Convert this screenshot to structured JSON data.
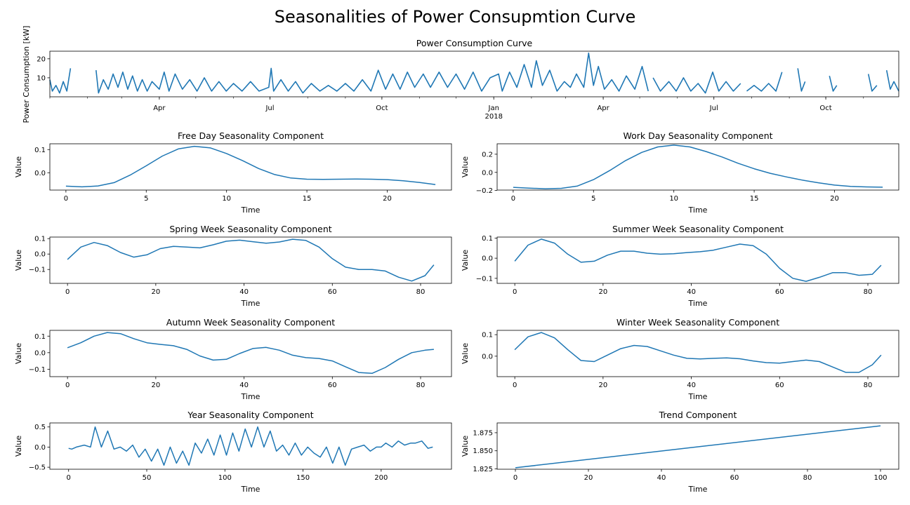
{
  "figure": {
    "title": "Seasonalities of Power Consupmtion Curve"
  },
  "colors": {
    "line": "#1f77b4",
    "axis": "#000000",
    "background": "#ffffff"
  },
  "chart_data": [
    {
      "id": "power",
      "type": "line",
      "title": "Power Consumption Curve",
      "xlabel": "",
      "ylabel": "Power Consumption [kW]",
      "ylim": [
        0,
        24
      ],
      "yticks": [
        10,
        20
      ],
      "xrange": [
        "2017-01-01",
        "2018-11-30"
      ],
      "xticks": [
        {
          "date": "2017-04-01",
          "label": "Apr"
        },
        {
          "date": "2017-07-01",
          "label": "Jul"
        },
        {
          "date": "2017-10-01",
          "label": "Oct"
        },
        {
          "date": "2018-01-01",
          "label": "Jan",
          "sublabel": "2018"
        },
        {
          "date": "2018-04-01",
          "label": "Apr"
        },
        {
          "date": "2018-07-01",
          "label": "Jul"
        },
        {
          "date": "2018-10-01",
          "label": "Oct"
        }
      ],
      "note_values": "dense hourly signal; approximate envelope samples (date, kW) with gaps where no data",
      "segments": [
        [
          [
            "2017-01-01",
            9
          ],
          [
            "2017-01-03",
            3
          ],
          [
            "2017-01-06",
            6
          ],
          [
            "2017-01-09",
            2
          ],
          [
            "2017-01-12",
            8
          ],
          [
            "2017-01-15",
            3
          ],
          [
            "2017-01-18",
            15
          ]
        ],
        [
          [
            "2017-02-08",
            14
          ],
          [
            "2017-02-10",
            2
          ],
          [
            "2017-02-14",
            9
          ],
          [
            "2017-02-18",
            4
          ],
          [
            "2017-02-22",
            12
          ],
          [
            "2017-02-26",
            5
          ],
          [
            "2017-03-02",
            13
          ],
          [
            "2017-03-06",
            4
          ],
          [
            "2017-03-10",
            11
          ],
          [
            "2017-03-14",
            3
          ],
          [
            "2017-03-18",
            9
          ],
          [
            "2017-03-22",
            3
          ],
          [
            "2017-03-26",
            8
          ],
          [
            "2017-04-01",
            4
          ],
          [
            "2017-04-05",
            13
          ],
          [
            "2017-04-09",
            3
          ],
          [
            "2017-04-14",
            12
          ],
          [
            "2017-04-20",
            4
          ],
          [
            "2017-04-26",
            9
          ],
          [
            "2017-05-02",
            3
          ],
          [
            "2017-05-08",
            10
          ],
          [
            "2017-05-14",
            3
          ],
          [
            "2017-05-20",
            8
          ],
          [
            "2017-05-26",
            3
          ],
          [
            "2017-06-01",
            7
          ],
          [
            "2017-06-08",
            3
          ],
          [
            "2017-06-15",
            8
          ],
          [
            "2017-06-22",
            3
          ],
          [
            "2017-06-30",
            5
          ],
          [
            "2017-07-02",
            15
          ],
          [
            "2017-07-04",
            3
          ],
          [
            "2017-07-10",
            9
          ],
          [
            "2017-07-16",
            3
          ],
          [
            "2017-07-22",
            8
          ],
          [
            "2017-07-28",
            2
          ],
          [
            "2017-08-04",
            7
          ],
          [
            "2017-08-11",
            3
          ],
          [
            "2017-08-18",
            6
          ],
          [
            "2017-08-25",
            3
          ],
          [
            "2017-09-01",
            7
          ],
          [
            "2017-09-08",
            3
          ],
          [
            "2017-09-15",
            9
          ],
          [
            "2017-09-22",
            3
          ],
          [
            "2017-09-28",
            14
          ],
          [
            "2017-10-04",
            4
          ],
          [
            "2017-10-10",
            12
          ],
          [
            "2017-10-16",
            4
          ],
          [
            "2017-10-22",
            13
          ],
          [
            "2017-10-28",
            5
          ],
          [
            "2017-11-04",
            12
          ],
          [
            "2017-11-10",
            5
          ],
          [
            "2017-11-17",
            13
          ],
          [
            "2017-11-24",
            5
          ],
          [
            "2017-12-01",
            12
          ],
          [
            "2017-12-08",
            4
          ],
          [
            "2017-12-15",
            13
          ],
          [
            "2017-12-22",
            3
          ],
          [
            "2017-12-29",
            10
          ],
          [
            "2018-01-05",
            12
          ],
          [
            "2018-01-08",
            3
          ],
          [
            "2018-01-14",
            13
          ],
          [
            "2018-01-20",
            5
          ],
          [
            "2018-01-26",
            17
          ],
          [
            "2018-02-01",
            5
          ],
          [
            "2018-02-05",
            19
          ],
          [
            "2018-02-10",
            6
          ],
          [
            "2018-02-16",
            14
          ],
          [
            "2018-02-22",
            3
          ],
          [
            "2018-02-28",
            8
          ],
          [
            "2018-03-05",
            5
          ],
          [
            "2018-03-10",
            12
          ],
          [
            "2018-03-16",
            5
          ],
          [
            "2018-03-20",
            23
          ],
          [
            "2018-03-24",
            6
          ],
          [
            "2018-03-28",
            16
          ],
          [
            "2018-04-02",
            4
          ],
          [
            "2018-04-08",
            9
          ],
          [
            "2018-04-14",
            3
          ],
          [
            "2018-04-20",
            11
          ],
          [
            "2018-04-27",
            4
          ],
          [
            "2018-05-03",
            16
          ],
          [
            "2018-05-08",
            3
          ]
        ],
        [
          [
            "2018-05-12",
            10
          ],
          [
            "2018-05-18",
            3
          ],
          [
            "2018-05-25",
            8
          ],
          [
            "2018-05-31",
            3
          ],
          [
            "2018-06-06",
            10
          ],
          [
            "2018-06-12",
            3
          ],
          [
            "2018-06-18",
            7
          ],
          [
            "2018-06-24",
            2
          ],
          [
            "2018-06-30",
            13
          ],
          [
            "2018-07-05",
            3
          ],
          [
            "2018-07-11",
            8
          ],
          [
            "2018-07-17",
            3
          ],
          [
            "2018-07-23",
            7
          ]
        ],
        [
          [
            "2018-07-28",
            3
          ],
          [
            "2018-08-03",
            6
          ],
          [
            "2018-08-09",
            3
          ],
          [
            "2018-08-15",
            7
          ],
          [
            "2018-08-21",
            3
          ],
          [
            "2018-08-26",
            13
          ]
        ],
        [
          [
            "2018-09-08",
            15
          ],
          [
            "2018-09-11",
            3
          ],
          [
            "2018-09-14",
            8
          ]
        ],
        [
          [
            "2018-10-04",
            11
          ],
          [
            "2018-10-07",
            3
          ],
          [
            "2018-10-10",
            6
          ]
        ],
        [
          [
            "2018-11-05",
            12
          ],
          [
            "2018-11-08",
            3
          ],
          [
            "2018-11-12",
            6
          ]
        ],
        [
          [
            "2018-11-20",
            14
          ],
          [
            "2018-11-23",
            4
          ],
          [
            "2018-11-26",
            8
          ],
          [
            "2018-11-30",
            3
          ]
        ]
      ]
    },
    {
      "id": "freeday",
      "type": "line",
      "title": "Free Day Seasonality Component",
      "xlabel": "Time",
      "ylabel": "Value",
      "xlim": [
        -1,
        24
      ],
      "ylim": [
        -0.075,
        0.125
      ],
      "xticks": [
        0,
        5,
        10,
        15,
        20
      ],
      "yticks": [
        0.0,
        0.1
      ],
      "ytick_labels": [
        "0.0",
        "0.1"
      ],
      "x": [
        0,
        1,
        2,
        3,
        4,
        5,
        6,
        7,
        8,
        9,
        10,
        11,
        12,
        13,
        14,
        15,
        16,
        17,
        18,
        19,
        20,
        21,
        22,
        23
      ],
      "y": [
        -0.058,
        -0.061,
        -0.057,
        -0.043,
        -0.01,
        0.03,
        0.072,
        0.103,
        0.114,
        0.107,
        0.083,
        0.052,
        0.018,
        -0.008,
        -0.023,
        -0.028,
        -0.029,
        -0.028,
        -0.027,
        -0.028,
        -0.03,
        -0.035,
        -0.042,
        -0.051
      ]
    },
    {
      "id": "workday",
      "type": "line",
      "title": "Work Day Seasonality Component",
      "xlabel": "Time",
      "ylabel": "Value",
      "xlim": [
        -1,
        24
      ],
      "ylim": [
        -0.195,
        0.315
      ],
      "xticks": [
        0,
        5,
        10,
        15,
        20
      ],
      "yticks": [
        -0.2,
        0.0,
        0.2
      ],
      "ytick_labels": [
        "−0.2",
        "0.0",
        "0.2"
      ],
      "x": [
        0,
        1,
        2,
        3,
        4,
        5,
        6,
        7,
        8,
        9,
        10,
        11,
        12,
        13,
        14,
        15,
        16,
        17,
        18,
        19,
        20,
        21,
        22,
        23
      ],
      "y": [
        -0.165,
        -0.173,
        -0.18,
        -0.176,
        -0.15,
        -0.08,
        0.02,
        0.13,
        0.22,
        0.28,
        0.3,
        0.28,
        0.23,
        0.17,
        0.1,
        0.04,
        -0.01,
        -0.05,
        -0.085,
        -0.115,
        -0.14,
        -0.155,
        -0.16,
        -0.163
      ]
    },
    {
      "id": "spring",
      "type": "line",
      "title": "Spring Week Seasonality Component",
      "xlabel": "Time",
      "ylabel": "Value",
      "xlim": [
        -4,
        87
      ],
      "ylim": [
        -0.19,
        0.11
      ],
      "xticks": [
        0,
        20,
        40,
        60,
        80
      ],
      "yticks": [
        -0.1,
        0.0,
        0.1
      ],
      "ytick_labels": [
        "−0.1",
        "0.0",
        "0.1"
      ],
      "x": [
        0,
        3,
        6,
        9,
        12,
        15,
        18,
        21,
        24,
        27,
        30,
        33,
        36,
        39,
        42,
        45,
        48,
        51,
        54,
        57,
        60,
        63,
        66,
        69,
        72,
        75,
        78,
        81,
        83
      ],
      "y": [
        -0.035,
        0.045,
        0.075,
        0.055,
        0.01,
        -0.02,
        -0.005,
        0.035,
        0.05,
        0.045,
        0.04,
        0.06,
        0.083,
        0.09,
        0.08,
        0.07,
        0.078,
        0.096,
        0.088,
        0.045,
        -0.03,
        -0.085,
        -0.1,
        -0.1,
        -0.11,
        -0.15,
        -0.175,
        -0.14,
        -0.07
      ]
    },
    {
      "id": "summer",
      "type": "line",
      "title": "Summer Week Seasonality Component",
      "xlabel": "Time",
      "ylabel": "Value",
      "xlim": [
        -4,
        87
      ],
      "ylim": [
        -0.125,
        0.105
      ],
      "xticks": [
        0,
        20,
        40,
        60,
        80
      ],
      "yticks": [
        -0.1,
        0.0,
        0.1
      ],
      "ytick_labels": [
        "−0.1",
        "0.0",
        "0.1"
      ],
      "x": [
        0,
        3,
        6,
        9,
        12,
        15,
        18,
        21,
        24,
        27,
        30,
        33,
        36,
        39,
        42,
        45,
        48,
        51,
        54,
        57,
        60,
        63,
        66,
        69,
        72,
        75,
        78,
        81,
        83
      ],
      "y": [
        -0.015,
        0.065,
        0.095,
        0.075,
        0.02,
        -0.02,
        -0.015,
        0.015,
        0.035,
        0.035,
        0.025,
        0.02,
        0.022,
        0.028,
        0.032,
        0.04,
        0.055,
        0.07,
        0.062,
        0.02,
        -0.05,
        -0.1,
        -0.115,
        -0.095,
        -0.072,
        -0.072,
        -0.085,
        -0.08,
        -0.035
      ]
    },
    {
      "id": "autumn",
      "type": "line",
      "title": "Autumn Week Seasonality Component",
      "xlabel": "Time",
      "ylabel": "Value",
      "xlim": [
        -4,
        87
      ],
      "ylim": [
        -0.145,
        0.135
      ],
      "xticks": [
        0,
        20,
        40,
        60,
        80
      ],
      "yticks": [
        -0.1,
        0.0,
        0.1
      ],
      "ytick_labels": [
        "−0.1",
        "0.0",
        "0.1"
      ],
      "x": [
        0,
        3,
        6,
        9,
        12,
        15,
        18,
        21,
        24,
        27,
        30,
        33,
        36,
        39,
        42,
        45,
        48,
        51,
        54,
        57,
        60,
        63,
        66,
        69,
        72,
        75,
        78,
        81,
        83
      ],
      "y": [
        0.03,
        0.06,
        0.1,
        0.122,
        0.115,
        0.085,
        0.06,
        0.05,
        0.042,
        0.02,
        -0.02,
        -0.045,
        -0.04,
        -0.005,
        0.025,
        0.032,
        0.015,
        -0.015,
        -0.03,
        -0.035,
        -0.05,
        -0.085,
        -0.12,
        -0.125,
        -0.09,
        -0.04,
        0.0,
        0.015,
        0.02
      ]
    },
    {
      "id": "winter",
      "type": "line",
      "title": "Winter Week Seasonality Component",
      "xlabel": "Time",
      "ylabel": "Value",
      "xlim": [
        -4,
        87
      ],
      "ylim": [
        -0.095,
        0.12
      ],
      "xticks": [
        0,
        20,
        40,
        60,
        80
      ],
      "yticks": [
        0.0,
        0.1
      ],
      "ytick_labels": [
        "0.0",
        "0.1"
      ],
      "x": [
        0,
        3,
        6,
        9,
        12,
        15,
        18,
        21,
        24,
        27,
        30,
        33,
        36,
        39,
        42,
        45,
        48,
        51,
        54,
        57,
        60,
        63,
        66,
        69,
        72,
        75,
        78,
        81,
        83
      ],
      "y": [
        0.03,
        0.09,
        0.11,
        0.085,
        0.03,
        -0.02,
        -0.025,
        0.005,
        0.035,
        0.05,
        0.045,
        0.025,
        0.005,
        -0.01,
        -0.013,
        -0.01,
        -0.008,
        -0.012,
        -0.022,
        -0.03,
        -0.032,
        -0.025,
        -0.018,
        -0.025,
        -0.05,
        -0.075,
        -0.075,
        -0.04,
        0.005
      ]
    },
    {
      "id": "year",
      "type": "line",
      "title": "Year Seasonality Component",
      "xlabel": "Time",
      "ylabel": "Value",
      "xlim": [
        -12,
        245
      ],
      "ylim": [
        -0.55,
        0.6
      ],
      "xticks": [
        0,
        50,
        100,
        150,
        200
      ],
      "yticks": [
        -0.5,
        0.0,
        0.5
      ],
      "ytick_labels": [
        "−0.5",
        "0.0",
        "0.5"
      ],
      "x": [
        0,
        2,
        5,
        10,
        14,
        17,
        21,
        25,
        29,
        33,
        37,
        41,
        45,
        49,
        53,
        57,
        61,
        65,
        69,
        73,
        77,
        81,
        85,
        89,
        93,
        97,
        101,
        105,
        109,
        113,
        117,
        121,
        125,
        129,
        133,
        137,
        141,
        145,
        149,
        153,
        157,
        161,
        165,
        169,
        173,
        177,
        181,
        185,
        189,
        193,
        197,
        200,
        203,
        207,
        211,
        215,
        219,
        222,
        226,
        230,
        233
      ],
      "y": [
        -0.03,
        -0.05,
        0.0,
        0.05,
        0.0,
        0.5,
        0.0,
        0.4,
        -0.05,
        0.0,
        -0.1,
        0.05,
        -0.25,
        -0.05,
        -0.35,
        -0.05,
        -0.45,
        0.0,
        -0.4,
        -0.1,
        -0.45,
        0.1,
        -0.15,
        0.2,
        -0.2,
        0.3,
        -0.2,
        0.35,
        -0.1,
        0.45,
        0.0,
        0.5,
        0.0,
        0.4,
        -0.1,
        0.05,
        -0.2,
        0.1,
        -0.2,
        0.0,
        -0.15,
        -0.25,
        0.0,
        -0.4,
        0.0,
        -0.45,
        -0.05,
        0.0,
        0.05,
        -0.1,
        0.0,
        0.0,
        0.1,
        0.0,
        0.15,
        0.05,
        0.1,
        0.1,
        0.15,
        -0.03,
        0.0
      ]
    },
    {
      "id": "trend",
      "type": "line",
      "title": "Trend Component",
      "xlabel": "Time",
      "ylabel": "Value",
      "xlim": [
        -5,
        105
      ],
      "ylim": [
        1.8245,
        1.8885
      ],
      "xticks": [
        0,
        20,
        40,
        60,
        80,
        100
      ],
      "yticks": [
        1.825,
        1.85,
        1.875
      ],
      "ytick_labels": [
        "1.825",
        "1.850",
        "1.875"
      ],
      "x": [
        0,
        100
      ],
      "y": [
        1.8265,
        1.8845
      ]
    }
  ]
}
